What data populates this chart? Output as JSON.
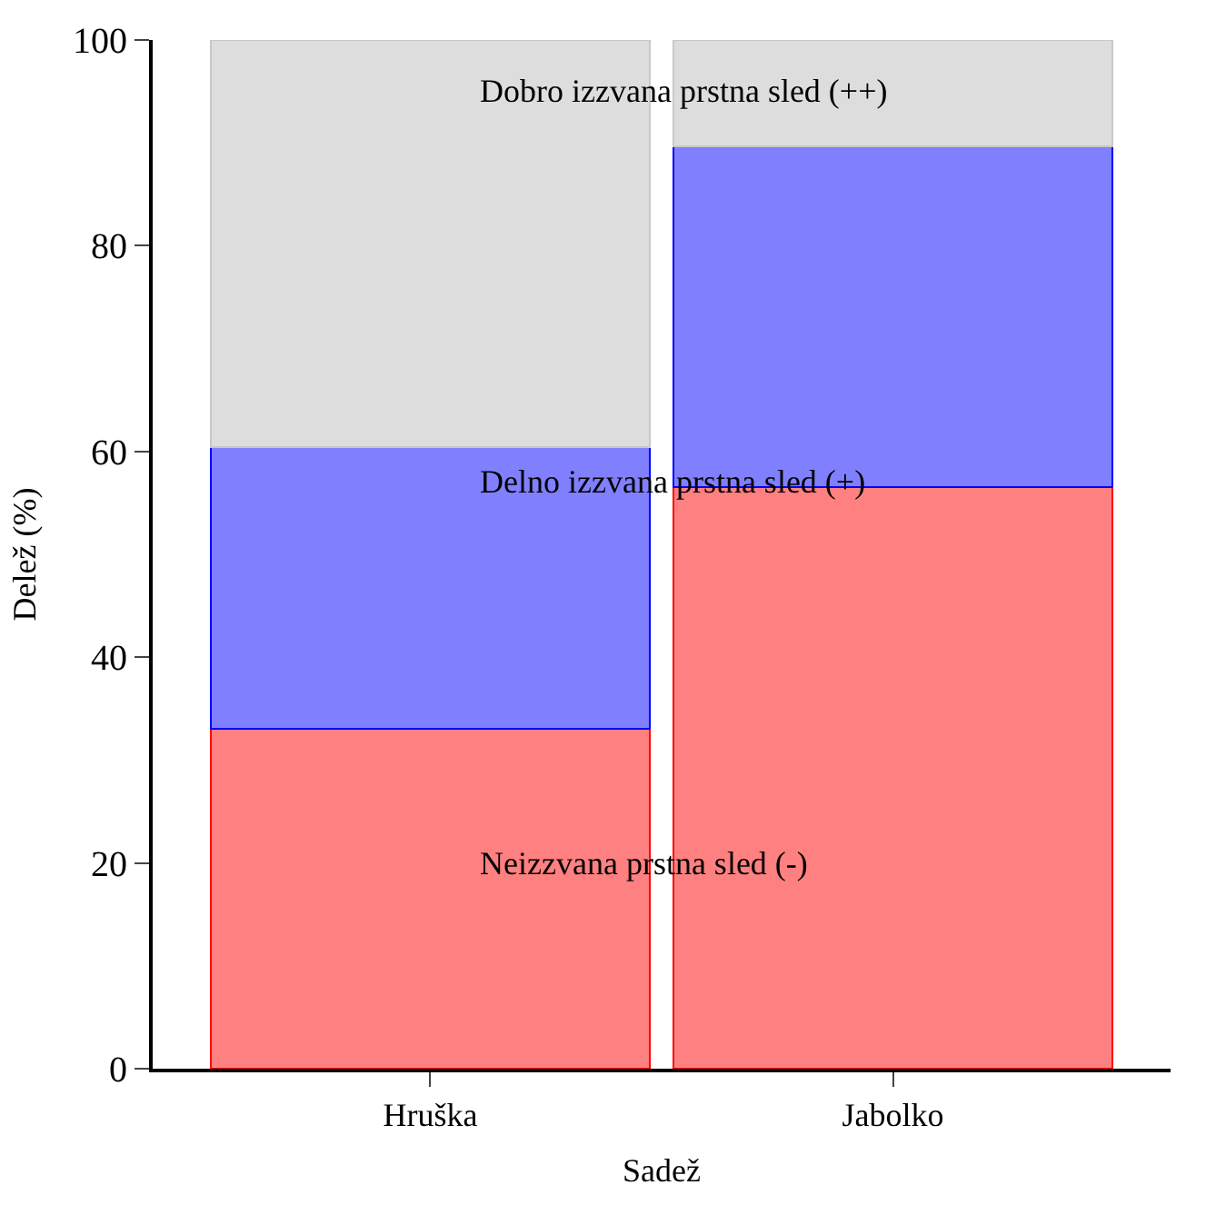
{
  "chart_data": {
    "type": "bar",
    "stacked": true,
    "xlabel": "Sadež",
    "ylabel": "Delež (%)",
    "categories": [
      "Hruška",
      "Jabolko"
    ],
    "series": [
      {
        "name": "Neizzvana prstna sled (-)",
        "color": "#ff8080",
        "values": [
          33.0,
          56.5
        ]
      },
      {
        "name": "Delno izzvana prstna sled (+)",
        "color": "#8080ff",
        "values": [
          27.4,
          33.2
        ]
      },
      {
        "name": "Dobro izzvana prstna sled (++)",
        "color": "#dddddd",
        "values": [
          39.6,
          10.3
        ]
      }
    ],
    "ylim": [
      0,
      100
    ],
    "yticks": [
      0,
      20,
      40,
      60,
      80,
      100
    ],
    "legend": false
  }
}
